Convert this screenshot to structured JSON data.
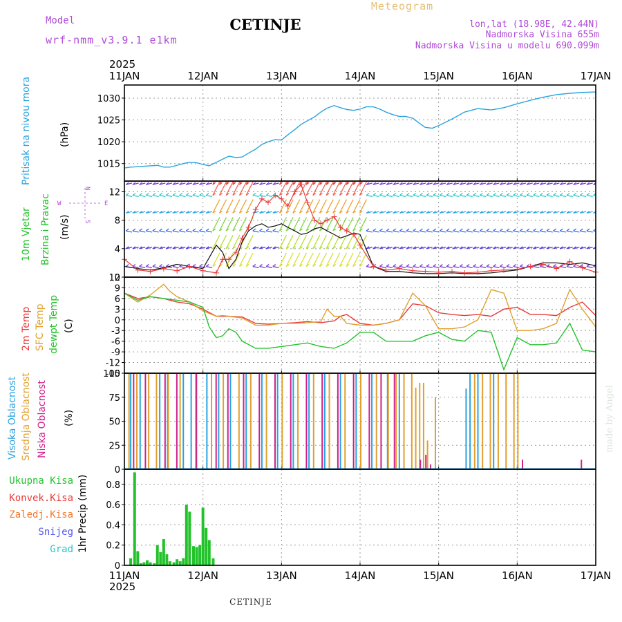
{
  "header": {
    "model_label": "Model",
    "model_name": "wrf-nmm_v3.9.1 e1km",
    "title": "CETINJE",
    "meteogram_label": "Meteogram",
    "lonlat": "lon,lat (18.98E, 42.44N)",
    "elevation": "Nadmorska Visina 655m",
    "model_elevation": "Nadmorska Visina u modelu 690.099m"
  },
  "footer": {
    "station": "CETINJE",
    "credit": "made by Angel"
  },
  "colors": {
    "pressure": "#29a3e0",
    "temp2m": "#e83a3a",
    "sfc": "#e0a030",
    "dewpt": "#22c32a",
    "high_cloud": "#29a3e0",
    "mid_cloud": "#e0a030",
    "low_cloud": "#d0208a",
    "precip": "#22c32a",
    "purple_label": "#b04ad8"
  },
  "time_axis": {
    "year": "2025",
    "ticks": [
      "11JAN",
      "12JAN",
      "13JAN",
      "14JAN",
      "15JAN",
      "16JAN",
      "17JAN"
    ],
    "range_days": [
      0,
      6
    ]
  },
  "chart_data": [
    {
      "type": "line",
      "id": "pressure",
      "ylabel": "Pritisak na nivou mora",
      "unit": "(hPa)",
      "yticks": [
        1015,
        1020,
        1025,
        1030
      ],
      "ylim": [
        1011,
        1033
      ],
      "grid": true,
      "series": [
        {
          "x": [
            0,
            0.08,
            0.17,
            0.25,
            0.33,
            0.42,
            0.5,
            0.58,
            0.67,
            0.75,
            0.83,
            0.92,
            1.0,
            1.08,
            1.17,
            1.25,
            1.33,
            1.42,
            1.5,
            1.58,
            1.67,
            1.75,
            1.83,
            1.92,
            2.0,
            2.08,
            2.17,
            2.25,
            2.33,
            2.42,
            2.5,
            2.58,
            2.67,
            2.75,
            2.83,
            2.92,
            3.0,
            3.08,
            3.17,
            3.25,
            3.33,
            3.42,
            3.5,
            3.58,
            3.67,
            3.75,
            3.83,
            3.92,
            4.0,
            4.17,
            4.33,
            4.5,
            4.67,
            4.83,
            5.0,
            5.17,
            5.33,
            5.5,
            5.67,
            5.83,
            6.0
          ],
          "values": [
            1014,
            1014.2,
            1014.3,
            1014.4,
            1014.5,
            1014.6,
            1014.2,
            1014.2,
            1014.6,
            1015,
            1015.3,
            1015.2,
            1014.8,
            1014.5,
            1015.3,
            1016,
            1016.7,
            1016.4,
            1016.5,
            1017.4,
            1018.3,
            1019.4,
            1020,
            1020.5,
            1020.4,
            1021.6,
            1022.8,
            1024,
            1024.8,
            1025.7,
            1026.8,
            1027.7,
            1028.3,
            1027.8,
            1027.4,
            1027.2,
            1027.5,
            1028,
            1028,
            1027.5,
            1026.8,
            1026.2,
            1025.8,
            1025.8,
            1025.4,
            1024.3,
            1023.3,
            1023.1,
            1023.7,
            1025.2,
            1026.8,
            1027.6,
            1027.3,
            1027.8,
            1028.7,
            1029.5,
            1030.2,
            1030.8,
            1031.1,
            1031.3,
            1031.4
          ]
        }
      ]
    },
    {
      "type": "line",
      "id": "wind",
      "ylabel_line1": "10m Vjetar",
      "ylabel_line2": "Brzina i Pravac",
      "unit": "(m/s)",
      "compass": {
        "n": "N",
        "s": "S",
        "w": "W",
        "e": "E"
      },
      "yticks": [
        0,
        4,
        8,
        12
      ],
      "ylim": [
        0,
        13.5
      ],
      "grid": true,
      "series": [
        {
          "name": "speed",
          "x": [
            0,
            0.17,
            0.33,
            0.5,
            0.67,
            0.83,
            1.0,
            1.17,
            1.25,
            1.33,
            1.42,
            1.5,
            1.58,
            1.67,
            1.75,
            1.83,
            1.92,
            2.0,
            2.08,
            2.17,
            2.25,
            2.33,
            2.42,
            2.5,
            2.58,
            2.67,
            2.75,
            2.83,
            2.92,
            3.0,
            3.17,
            3.33,
            3.5,
            3.67,
            3.83,
            4.0,
            4.17,
            4.33,
            4.5,
            4.67,
            4.83,
            5.0,
            5.17,
            5.33,
            5.5,
            5.67,
            5.83,
            6.0
          ],
          "values": [
            1.5,
            1.2,
            1.0,
            1.3,
            1.8,
            1.5,
            1.2,
            4.5,
            3.5,
            1.2,
            2.5,
            5.0,
            6.5,
            7.2,
            7.5,
            7.0,
            7.2,
            7.5,
            7.0,
            6.5,
            6.0,
            6.2,
            6.8,
            7.0,
            6.5,
            6.0,
            5.5,
            5.8,
            6.2,
            6.0,
            1.5,
            0.8,
            0.8,
            0.6,
            0.5,
            0.5,
            0.6,
            0.5,
            0.5,
            0.6,
            0.8,
            1.0,
            1.5,
            2.0,
            2.0,
            1.8,
            2.0,
            1.6
          ]
        },
        {
          "name": "gust",
          "x": [
            0,
            0.17,
            0.33,
            0.5,
            0.67,
            0.83,
            1.0,
            1.17,
            1.25,
            1.33,
            1.42,
            1.5,
            1.58,
            1.67,
            1.75,
            1.83,
            1.92,
            2.0,
            2.08,
            2.17,
            2.25,
            2.33,
            2.42,
            2.5,
            2.58,
            2.67,
            2.75,
            2.83,
            2.92,
            3.0,
            3.17,
            3.33,
            3.5,
            3.67,
            3.83,
            4.0,
            4.17,
            4.33,
            4.5,
            4.67,
            4.83,
            5.0,
            5.17,
            5.33,
            5.5,
            5.67,
            5.83,
            6.0
          ],
          "values": [
            2.5,
            1.0,
            0.8,
            1.2,
            0.9,
            1.5,
            0.9,
            0.6,
            2.5,
            2.5,
            3.5,
            5.5,
            7.0,
            9.5,
            11.0,
            10.5,
            11.5,
            11.0,
            10.0,
            12.0,
            13.0,
            10.5,
            8.0,
            7.5,
            8.0,
            8.5,
            7.0,
            6.5,
            6.0,
            4.5,
            1.5,
            1.0,
            1.2,
            0.9,
            0.8,
            0.7,
            0.8,
            0.6,
            0.7,
            0.9,
            1.0,
            1.1,
            1.5,
            1.8,
            1.2,
            2.2,
            1.3,
            0.7
          ]
        }
      ]
    },
    {
      "type": "line",
      "id": "temperature",
      "labels": [
        "2m Temp",
        "SFC Temp",
        "dewpt Temp"
      ],
      "unit": "(C)",
      "yticks": [
        -15,
        -12,
        -9,
        -6,
        -3,
        0,
        3,
        6,
        9,
        12
      ],
      "ylim": [
        -15,
        12
      ],
      "grid": true,
      "series": [
        {
          "name": "2m Temp",
          "x": [
            0,
            0.17,
            0.33,
            0.5,
            0.67,
            0.83,
            1.0,
            1.17,
            1.25,
            1.33,
            1.5,
            1.67,
            1.83,
            2.0,
            2.17,
            2.33,
            2.5,
            2.67,
            2.75,
            2.83,
            3.0,
            3.17,
            3.33,
            3.5,
            3.67,
            3.83,
            4.0,
            4.17,
            4.33,
            4.5,
            4.67,
            4.83,
            5.0,
            5.17,
            5.33,
            5.5,
            5.67,
            5.83,
            6.0
          ],
          "values": [
            7.5,
            6.0,
            6.5,
            6.0,
            5.0,
            4.5,
            3.0,
            1.0,
            1.0,
            1.0,
            0.8,
            -1.0,
            -1.2,
            -1.0,
            -0.8,
            -0.5,
            -0.8,
            -0.3,
            1.0,
            1.5,
            -1.0,
            -1.5,
            -1.0,
            0.0,
            4.5,
            4.0,
            2.0,
            1.5,
            1.2,
            1.5,
            1.0,
            3.0,
            3.5,
            1.5,
            1.5,
            1.2,
            3.5,
            5.0,
            1.2
          ]
        },
        {
          "name": "SFC Temp",
          "x": [
            0,
            0.17,
            0.33,
            0.5,
            0.58,
            0.67,
            0.83,
            1.0,
            1.17,
            1.25,
            1.33,
            1.5,
            1.67,
            1.83,
            2.0,
            2.17,
            2.33,
            2.5,
            2.58,
            2.67,
            2.75,
            2.83,
            3.0,
            3.17,
            3.33,
            3.5,
            3.67,
            3.83,
            4.0,
            4.17,
            4.33,
            4.5,
            4.67,
            4.83,
            5.0,
            5.17,
            5.33,
            5.5,
            5.67,
            5.83,
            6.0
          ],
          "values": [
            7.5,
            5.0,
            7.0,
            10.0,
            8.0,
            6.5,
            5.0,
            2.5,
            1.0,
            1.2,
            1.0,
            0.5,
            -1.5,
            -1.5,
            -1.0,
            -1.0,
            -0.8,
            -0.5,
            3.0,
            1.0,
            1.0,
            -1.0,
            -1.5,
            -1.5,
            -1.0,
            0.0,
            7.5,
            4.0,
            -2.5,
            -2.5,
            -2.0,
            0.0,
            8.5,
            7.5,
            -3.0,
            -3.0,
            -2.5,
            -1.0,
            8.5,
            3.0,
            -2.0
          ]
        },
        {
          "name": "dewpt Temp",
          "x": [
            0,
            0.17,
            0.33,
            0.5,
            0.67,
            0.83,
            1.0,
            1.08,
            1.17,
            1.25,
            1.33,
            1.42,
            1.5,
            1.67,
            1.83,
            2.0,
            2.17,
            2.33,
            2.5,
            2.67,
            2.83,
            3.0,
            3.17,
            3.33,
            3.5,
            3.67,
            3.83,
            4.0,
            4.17,
            4.33,
            4.5,
            4.67,
            4.83,
            5.0,
            5.17,
            5.33,
            5.5,
            5.67,
            5.83,
            6.0
          ],
          "values": [
            7.5,
            5.5,
            6.5,
            6.0,
            5.5,
            5.0,
            3.5,
            -2.0,
            -5.0,
            -4.5,
            -2.5,
            -3.5,
            -6.0,
            -8.0,
            -8.0,
            -7.5,
            -7.0,
            -6.5,
            -7.5,
            -8.0,
            -6.5,
            -3.5,
            -3.5,
            -6.0,
            -6.0,
            -6.0,
            -4.5,
            -3.5,
            -5.5,
            -6.0,
            -3.0,
            -3.5,
            -14.0,
            -5.0,
            -7.0,
            -7.0,
            -6.5,
            -1.0,
            -8.5,
            -9.0
          ]
        }
      ]
    },
    {
      "type": "bar",
      "id": "cloud",
      "labels": [
        "Visoka Oblacnost",
        "Srednja Oblacnost",
        "Niska Oblacnost"
      ],
      "unit": "(%)",
      "yticks": [
        0,
        25,
        50,
        75,
        100
      ],
      "ylim": [
        0,
        100
      ],
      "grid": true,
      "series": [
        {
          "name": "Visoka Oblacnost",
          "x": [
            0.08,
            0.2,
            0.45,
            0.55,
            0.75,
            0.85,
            1.05,
            1.2,
            1.35,
            1.55,
            1.75,
            1.95,
            2.15,
            2.35,
            2.55,
            2.75,
            2.95,
            3.15,
            3.35,
            3.5,
            4.35,
            4.4,
            4.5,
            4.7
          ],
          "values": [
            100,
            100,
            100,
            100,
            100,
            100,
            100,
            100,
            100,
            100,
            100,
            100,
            100,
            100,
            100,
            100,
            100,
            100,
            100,
            100,
            84,
            100,
            100,
            100
          ]
        },
        {
          "name": "Srednja Oblacnost",
          "x": [
            0.05,
            0.15,
            0.3,
            0.4,
            0.55,
            0.7,
            0.9,
            1.1,
            1.25,
            1.45,
            1.6,
            1.8,
            2.0,
            2.2,
            2.4,
            2.6,
            2.8,
            3.0,
            3.2,
            3.35,
            3.45,
            3.55,
            3.65,
            3.7,
            3.75,
            3.8,
            3.85,
            3.95,
            4.45,
            4.55,
            4.65,
            4.75,
            4.85,
            4.95,
            5.0
          ],
          "values": [
            100,
            100,
            100,
            100,
            100,
            100,
            100,
            100,
            100,
            100,
            100,
            100,
            100,
            100,
            100,
            100,
            100,
            100,
            100,
            100,
            100,
            100,
            100,
            85,
            90,
            90,
            30,
            75,
            100,
            100,
            100,
            100,
            100,
            100,
            100
          ]
        },
        {
          "name": "Niska Oblacnost",
          "x": [
            0.1,
            0.25,
            0.5,
            0.65,
            0.9,
            1.15,
            1.3,
            1.5,
            1.7,
            1.9,
            2.1,
            2.3,
            2.5,
            2.7,
            2.9,
            3.1,
            3.25,
            3.42,
            3.75,
            3.82,
            3.88,
            5.05,
            5.8
          ],
          "values": [
            100,
            100,
            100,
            100,
            100,
            100,
            100,
            100,
            100,
            100,
            100,
            100,
            100,
            100,
            100,
            100,
            100,
            100,
            10,
            15,
            5,
            10,
            10
          ]
        }
      ]
    },
    {
      "type": "bar",
      "id": "precip",
      "labels": [
        "Ukupna Kisa",
        "Konvek.Kisa",
        "Zaledj.Kisa",
        "Snijeg",
        "Grad"
      ],
      "label_colors": [
        "#22c32a",
        "#e83a3a",
        "#f07a30",
        "#5555ee",
        "#2cc8c8"
      ],
      "unit": "1hr Precip (mm)",
      "yticks": [
        0,
        0.2,
        0.4,
        0.6,
        0.8
      ],
      "ylim": [
        0,
        0.95
      ],
      "grid": true,
      "series": [
        {
          "name": "Ukupna Kisa",
          "x": [
            0.08,
            0.13,
            0.17,
            0.21,
            0.25,
            0.29,
            0.33,
            0.38,
            0.42,
            0.46,
            0.5,
            0.54,
            0.58,
            0.63,
            0.67,
            0.71,
            0.75,
            0.79,
            0.83,
            0.88,
            0.92,
            0.96,
            1.0,
            1.04,
            1.08,
            1.13
          ],
          "values": [
            0.07,
            0.92,
            0.14,
            0.02,
            0.03,
            0.05,
            0.03,
            0.02,
            0.2,
            0.13,
            0.26,
            0.11,
            0.04,
            0.03,
            0.06,
            0.04,
            0.07,
            0.6,
            0.53,
            0.19,
            0.18,
            0.2,
            0.57,
            0.37,
            0.25,
            0.07
          ]
        }
      ]
    }
  ]
}
